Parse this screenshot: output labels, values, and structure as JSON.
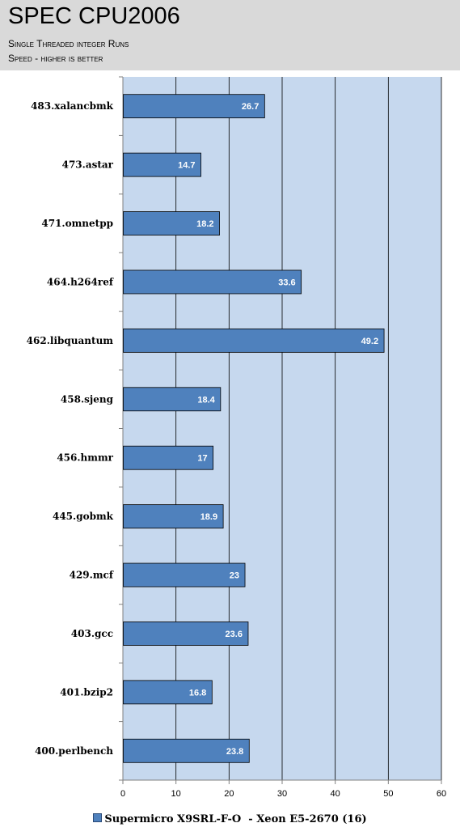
{
  "header": {
    "title": "SPEC CPU2006",
    "subtitle_line1": "Single Threaded integer Runs",
    "subtitle_line2": "Speed - higher is better"
  },
  "chart_data": {
    "type": "bar",
    "orientation": "horizontal",
    "categories": [
      "483.xalancbmk",
      "473.astar",
      "471.omnetpp",
      "464.h264ref",
      "462.libquantum",
      "458.sjeng",
      "456.hmmr",
      "445.gobmk",
      "429.mcf",
      "403.gcc",
      "401.bzip2",
      "400.perlbench"
    ],
    "series": [
      {
        "name": "Supermicro X9SRL-F-O  - Xeon E5-2670 (16)",
        "values": [
          26.7,
          14.7,
          18.2,
          33.6,
          49.2,
          18.4,
          17,
          18.9,
          23,
          23.6,
          16.8,
          23.8
        ],
        "labels": [
          "26.7",
          "14.7",
          "18.2",
          "33.6",
          "49.2",
          "18.4",
          "17",
          "18.9",
          "23",
          "23.6",
          "16.8",
          "23.8"
        ]
      }
    ],
    "xlim": [
      0,
      60
    ],
    "xticks": [
      "0",
      "10",
      "20",
      "30",
      "40",
      "50",
      "60"
    ],
    "grid": true,
    "legend_position": "bottom",
    "colors": {
      "bar": "#4f81bd",
      "plot_bg": "#c6d8ee",
      "grid": "#000000"
    }
  }
}
